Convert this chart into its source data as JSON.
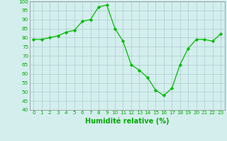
{
  "x": [
    0,
    1,
    2,
    3,
    4,
    5,
    6,
    7,
    8,
    9,
    10,
    11,
    12,
    13,
    14,
    15,
    16,
    17,
    18,
    19,
    20,
    21,
    22,
    23
  ],
  "y": [
    79,
    79,
    80,
    81,
    83,
    84,
    89,
    90,
    97,
    98,
    85,
    78,
    65,
    62,
    58,
    51,
    48,
    52,
    65,
    74,
    79,
    79,
    78,
    82
  ],
  "line_color": "#00bb00",
  "marker_color": "#00bb00",
  "bg_color": "#d4eeee",
  "grid_color": "#aacccc",
  "xlabel": "Humidité relative (%)",
  "xlabel_color": "#00aa00",
  "ylim": [
    40,
    100
  ],
  "xlim": [
    -0.5,
    23.5
  ],
  "yticks": [
    40,
    45,
    50,
    55,
    60,
    65,
    70,
    75,
    80,
    85,
    90,
    95,
    100
  ],
  "xticks": [
    0,
    1,
    2,
    3,
    4,
    5,
    6,
    7,
    8,
    9,
    10,
    11,
    12,
    13,
    14,
    15,
    16,
    17,
    18,
    19,
    20,
    21,
    22,
    23
  ],
  "tick_fontsize": 5.2,
  "xlabel_fontsize": 7.0
}
